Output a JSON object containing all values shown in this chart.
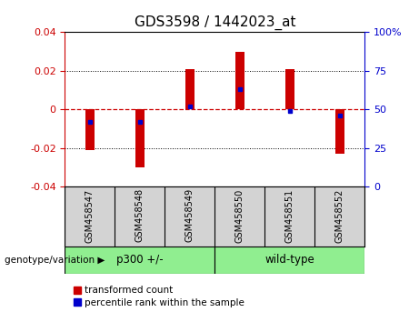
{
  "title": "GDS3598 / 1442023_at",
  "samples": [
    "GSM458547",
    "GSM458548",
    "GSM458549",
    "GSM458550",
    "GSM458551",
    "GSM458552"
  ],
  "red_bars": [
    -0.021,
    -0.03,
    0.021,
    0.03,
    0.021,
    -0.023
  ],
  "blue_dots_percentile": [
    42,
    42,
    52,
    63,
    49,
    46
  ],
  "groups": [
    {
      "label": "p300 +/-",
      "start": 0,
      "end": 3,
      "color": "#90EE90"
    },
    {
      "label": "wild-type",
      "start": 3,
      "end": 6,
      "color": "#90EE90"
    }
  ],
  "group_label_prefix": "genotype/variation",
  "ylim": [
    -0.04,
    0.04
  ],
  "yticks_left": [
    -0.04,
    -0.02,
    0.0,
    0.02,
    0.04
  ],
  "yticks_right": [
    0,
    25,
    50,
    75,
    100
  ],
  "ytick_right_labels": [
    "0",
    "25",
    "50",
    "75",
    "100%"
  ],
  "zero_line_color": "#cc0000",
  "grid_color": "#000000",
  "bar_color": "#cc0000",
  "dot_color": "#0000cc",
  "bg_color": "#ffffff",
  "plot_bg": "#ffffff",
  "left_tick_color": "#cc0000",
  "right_tick_color": "#0000cc",
  "legend_items": [
    "transformed count",
    "percentile rank within the sample"
  ],
  "legend_colors": [
    "#cc0000",
    "#0000cc"
  ],
  "bar_width": 0.18,
  "title_fontsize": 11,
  "tick_fontsize": 8,
  "label_fontsize": 8
}
